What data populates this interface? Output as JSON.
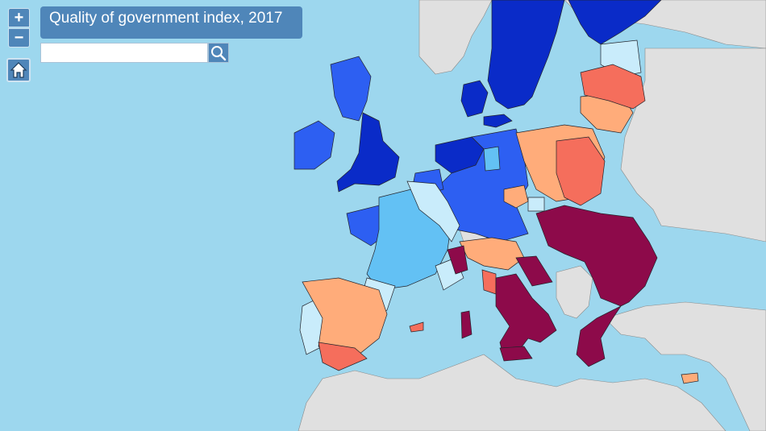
{
  "title": "Quality of government index, 2017",
  "controls": {
    "zoom_in_label": "+",
    "zoom_out_label": "−",
    "home_icon": "home-icon",
    "search_icon": "magnifier-icon"
  },
  "search": {
    "value": "",
    "placeholder": ""
  },
  "colors": {
    "sea": "#9dd7ee",
    "non_eu_land": "#e0e0e0",
    "border": "#23232b",
    "class_very_high": "#0a2bc8",
    "class_high": "#2d5ff2",
    "class_above_average": "#63c1f4",
    "class_average": "#c9ecfb",
    "class_below_average": "#ffac7a",
    "class_low": "#f56e5c",
    "class_very_low": "#8d0a4a",
    "ui_blue": "#4f86b9"
  }
}
